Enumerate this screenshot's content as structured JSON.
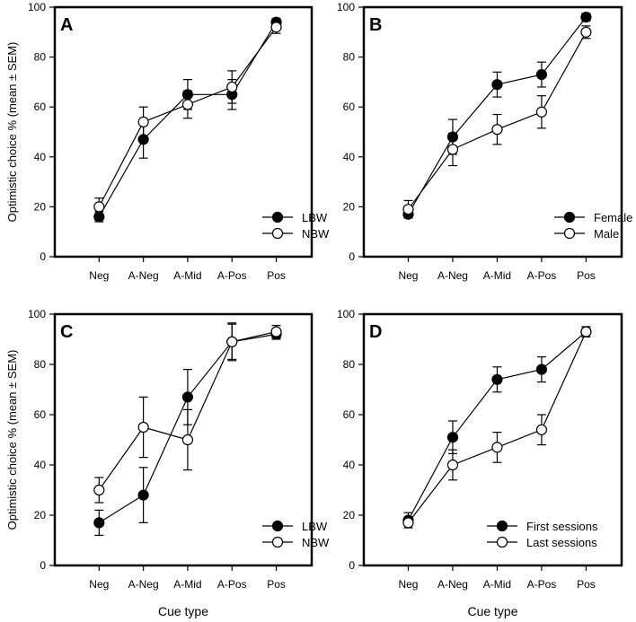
{
  "chart_data": [
    {
      "type": "line",
      "panel_label": "A",
      "categories": [
        "Neg",
        "A-Neg",
        "A-Mid",
        "A-Pos",
        "Pos"
      ],
      "ylabel": "Optimistic choice % (mean ± SEM)",
      "xlabel": "",
      "ylim": [
        0,
        100
      ],
      "yticks": [
        "0",
        "20",
        "40",
        "60",
        "80",
        "100"
      ],
      "legend_position": "bottom-right",
      "series": [
        {
          "name": "LBW",
          "marker": "filled",
          "values": [
            16,
            47,
            65,
            65,
            94
          ],
          "sem": [
            2,
            7.5,
            6,
            6,
            1.5
          ]
        },
        {
          "name": "NBW",
          "marker": "open",
          "values": [
            20,
            54,
            61,
            68,
            92
          ],
          "sem": [
            3.5,
            6,
            5.5,
            6.5,
            2.5
          ]
        }
      ]
    },
    {
      "type": "line",
      "panel_label": "B",
      "categories": [
        "Neg",
        "A-Neg",
        "A-Mid",
        "A-Pos",
        "Pos"
      ],
      "ylabel": "",
      "xlabel": "",
      "ylim": [
        0,
        100
      ],
      "yticks": [
        "0",
        "20",
        "40",
        "60",
        "80",
        "100"
      ],
      "legend_position": "bottom-right",
      "series": [
        {
          "name": "Female",
          "marker": "filled",
          "values": [
            17,
            48,
            69,
            73,
            96
          ],
          "sem": [
            1.5,
            7,
            5,
            5,
            1.5
          ]
        },
        {
          "name": "Male",
          "marker": "open",
          "values": [
            19,
            43,
            51,
            58,
            90
          ],
          "sem": [
            3.5,
            6.5,
            6,
            6.5,
            2.5
          ]
        }
      ]
    },
    {
      "type": "line",
      "panel_label": "C",
      "categories": [
        "Neg",
        "A-Neg",
        "A-Mid",
        "A-Pos",
        "Pos"
      ],
      "ylabel": "Optimistic choice % (mean ± SEM)",
      "xlabel": "Cue type",
      "ylim": [
        0,
        100
      ],
      "yticks": [
        "0",
        "20",
        "40",
        "60",
        "80",
        "100"
      ],
      "legend_position": "bottom-right",
      "series": [
        {
          "name": "LBW",
          "marker": "filled",
          "values": [
            17,
            28,
            67,
            89,
            92
          ],
          "sem": [
            5,
            11,
            11,
            7,
            2
          ]
        },
        {
          "name": "NBW",
          "marker": "open",
          "values": [
            30,
            55,
            50,
            89,
            93
          ],
          "sem": [
            5,
            12,
            12,
            7.5,
            2.5
          ]
        }
      ]
    },
    {
      "type": "line",
      "panel_label": "D",
      "categories": [
        "Neg",
        "A-Neg",
        "A-Mid",
        "A-Pos",
        "Pos"
      ],
      "ylabel": "",
      "xlabel": "Cue type",
      "ylim": [
        0,
        100
      ],
      "yticks": [
        "0",
        "20",
        "40",
        "60",
        "80",
        "100"
      ],
      "legend_position": "bottom-right",
      "series": [
        {
          "name": "First sessions",
          "marker": "filled",
          "values": [
            18,
            51,
            74,
            78,
            93
          ],
          "sem": [
            3,
            6.5,
            5,
            5,
            2
          ]
        },
        {
          "name": "Last sessions",
          "marker": "open",
          "values": [
            17,
            40,
            47,
            54,
            93
          ],
          "sem": [
            2,
            6,
            6,
            6,
            2
          ]
        }
      ]
    }
  ]
}
